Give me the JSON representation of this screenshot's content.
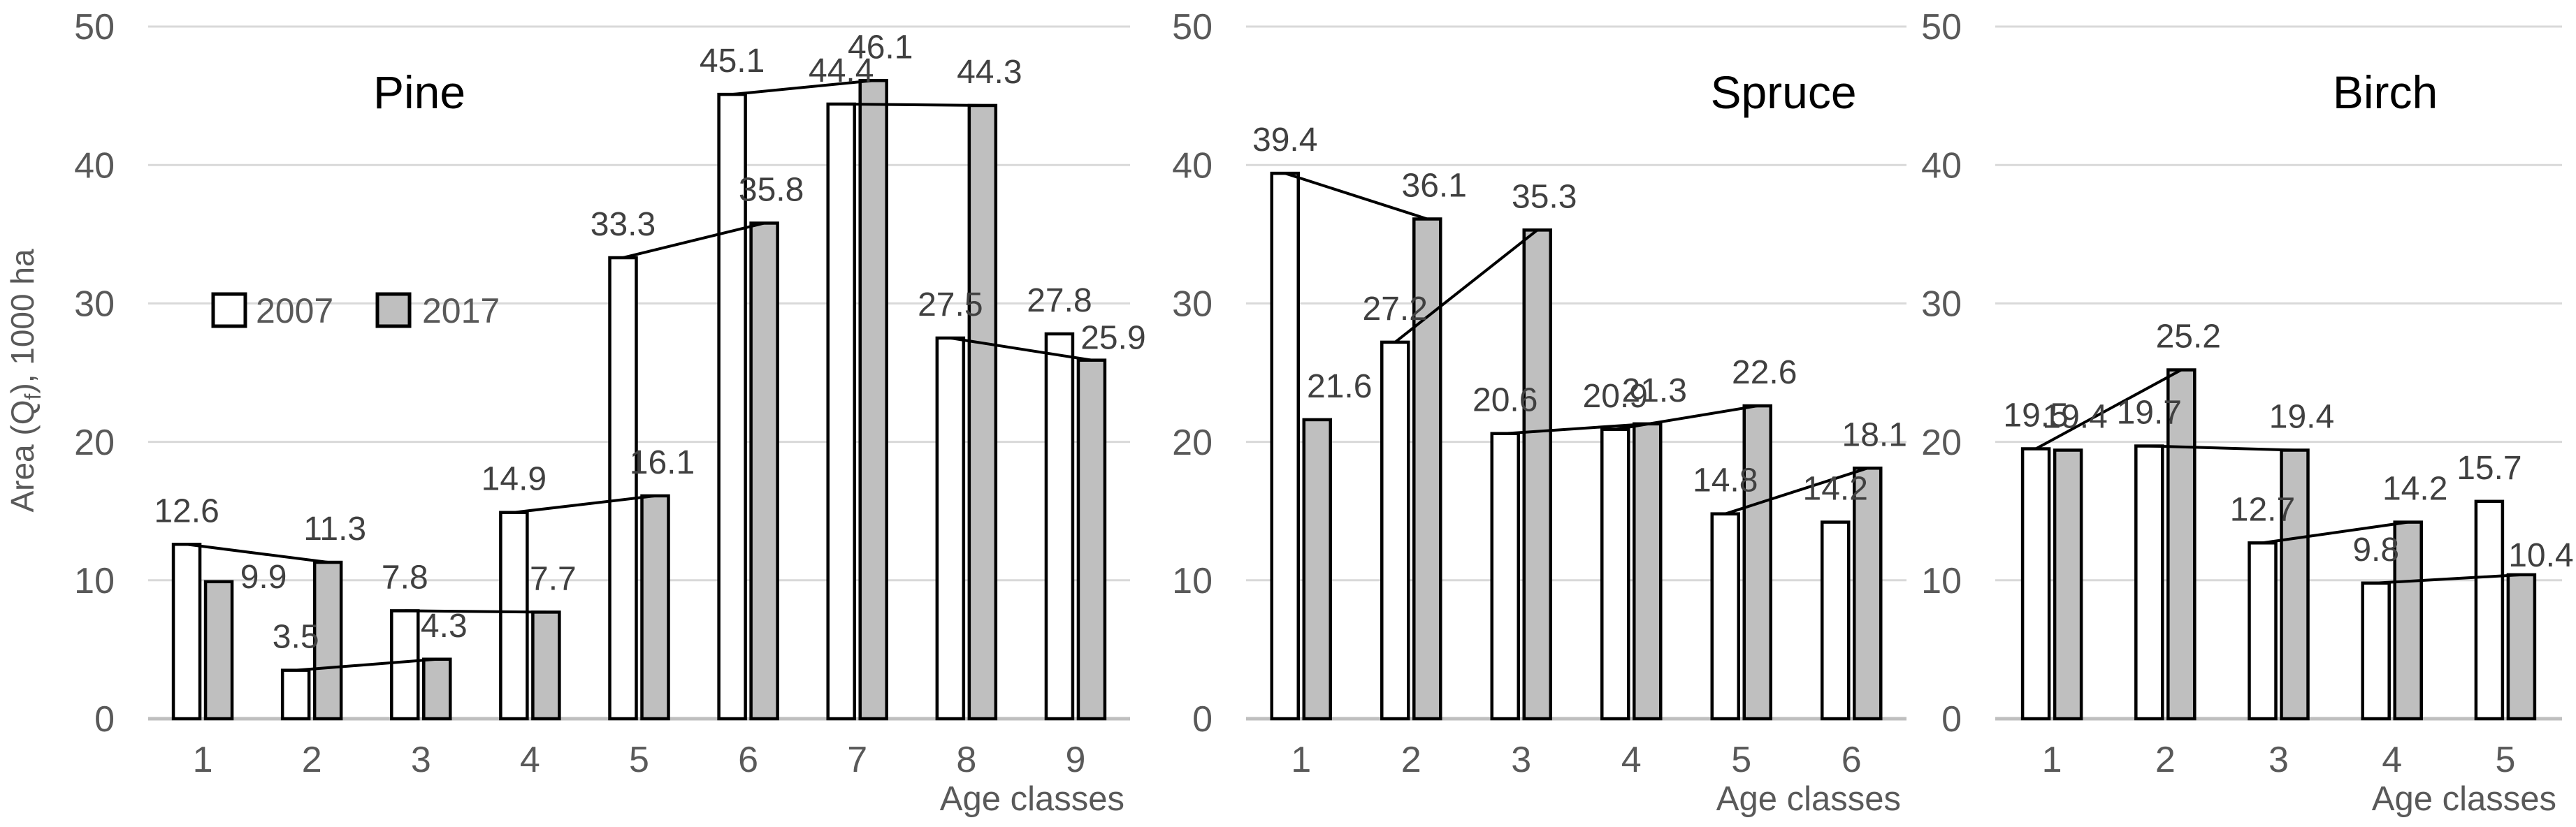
{
  "figure": {
    "ylabel": {
      "prefix": "Area (Q",
      "subscript": "f",
      "suffix": "), 1000 ha"
    },
    "xlabel": "Age classes",
    "legend": [
      {
        "label": "2007",
        "fill": "#FFFFFF"
      },
      {
        "label": "2017",
        "fill": "#BFBFBF"
      }
    ],
    "yticks": [
      0,
      10,
      20,
      30,
      40,
      50
    ],
    "colors": {
      "bar_2007_fill": "#FFFFFF",
      "bar_2017_fill": "#BFBFBF",
      "bar_border": "#000000",
      "connector_line": "#000000",
      "gridline": "#D9D9D9",
      "baseline": "#BFBFBF",
      "tick_text": "#595959",
      "data_label_text": "#404040",
      "title_text": "#000000",
      "background": "#FFFFFF"
    }
  },
  "chart_data": [
    {
      "type": "bar",
      "title": "Pine",
      "categories": [
        "1",
        "2",
        "3",
        "4",
        "5",
        "6",
        "7",
        "8",
        "9"
      ],
      "series": [
        {
          "name": "2007",
          "values": [
            12.6,
            3.5,
            7.8,
            14.9,
            33.3,
            45.1,
            44.4,
            27.5,
            27.8
          ]
        },
        {
          "name": "2017",
          "values": [
            9.9,
            11.3,
            4.3,
            7.7,
            16.1,
            35.8,
            46.1,
            44.3,
            25.9
          ]
        }
      ],
      "connector_lines": {
        "description": "line from 2007 bar top of class n to 2017 bar top of class n+1",
        "from_series": "2007",
        "to_series": "2017",
        "class_offset": 1
      },
      "xlabel": "Age classes",
      "ylabel": "Area (Qf), 1000 ha",
      "ylim": [
        0,
        50
      ],
      "grid": true,
      "data_labels": true,
      "legend_position": "inside-upper-left"
    },
    {
      "type": "bar",
      "title": "Spruce",
      "categories": [
        "1",
        "2",
        "3",
        "4",
        "5",
        "6"
      ],
      "series": [
        {
          "name": "2007",
          "values": [
            39.4,
            27.2,
            20.6,
            20.9,
            14.8,
            14.2
          ]
        },
        {
          "name": "2017",
          "values": [
            21.6,
            36.1,
            35.3,
            21.3,
            22.6,
            18.1
          ]
        }
      ],
      "connector_lines": {
        "description": "line from 2007 bar top of class n to 2017 bar top of class n+1",
        "from_series": "2007",
        "to_series": "2017",
        "class_offset": 1
      },
      "xlabel": "Age classes",
      "ylabel": "Area (Qf), 1000 ha",
      "ylim": [
        0,
        50
      ],
      "grid": true,
      "data_labels": true,
      "legend_position": "none"
    },
    {
      "type": "bar",
      "title": "Birch",
      "categories": [
        "1",
        "2",
        "3",
        "4",
        "5"
      ],
      "series": [
        {
          "name": "2007",
          "values": [
            19.5,
            19.7,
            12.7,
            9.8,
            15.7
          ]
        },
        {
          "name": "2017",
          "values": [
            19.4,
            25.2,
            19.4,
            14.2,
            10.4
          ]
        }
      ],
      "connector_lines": {
        "description": "line from 2007 bar top of class n to 2017 bar top of class n+1",
        "from_series": "2007",
        "to_series": "2017",
        "class_offset": 1
      },
      "xlabel": "Age classes",
      "ylabel": "Area (Qf), 1000 ha",
      "ylim": [
        0,
        50
      ],
      "grid": true,
      "data_labels": true,
      "legend_position": "none"
    }
  ]
}
